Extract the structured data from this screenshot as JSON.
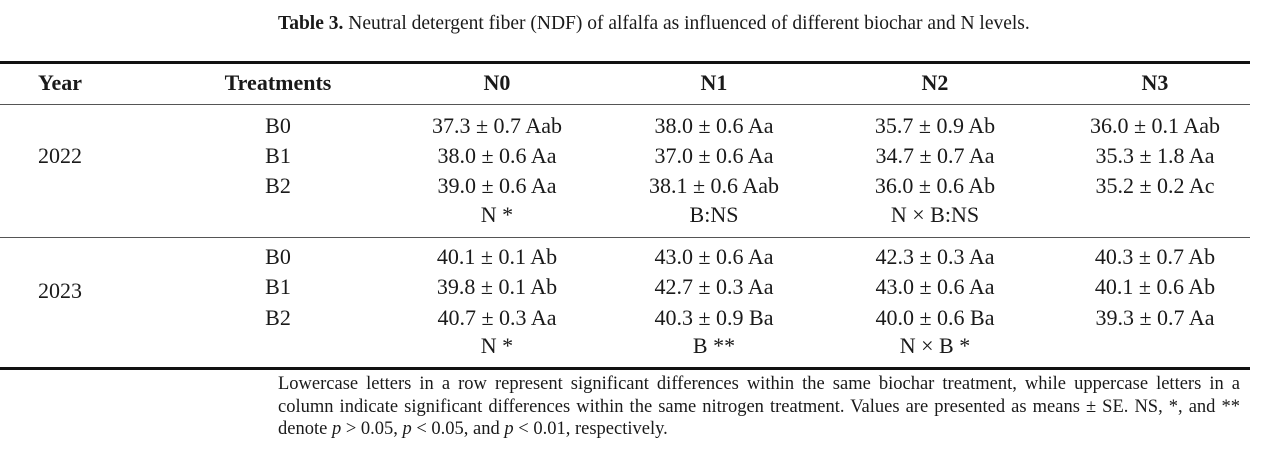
{
  "caption": {
    "label": "Table 3.",
    "text": "Neutral detergent fiber (NDF) of alfalfa as influenced of different biochar and N levels."
  },
  "headers": [
    "Year",
    "Treatments",
    "N0",
    "N1",
    "N2",
    "N3"
  ],
  "groups": [
    {
      "year": "2022",
      "rows": [
        {
          "treatment": "B0",
          "values": [
            "37.3 ± 0.7 Aab",
            "38.0 ± 0.6 Aa",
            "35.7 ± 0.9 Ab",
            "36.0 ± 0.1 Aab"
          ]
        },
        {
          "treatment": "B1",
          "values": [
            "38.0 ± 0.6 Aa",
            "37.0 ± 0.6 Aa",
            "34.7 ± 0.7 Aa",
            "35.3 ± 1.8 Aa"
          ]
        },
        {
          "treatment": "B2",
          "values": [
            "39.0 ± 0.6 Aa",
            "38.1 ± 0.6 Aab",
            "36.0 ± 0.6 Ab",
            "35.2 ± 0.2 Ac"
          ]
        }
      ],
      "significance": [
        "N *",
        "B:NS",
        "N × B:NS",
        ""
      ]
    },
    {
      "year": "2023",
      "rows": [
        {
          "treatment": "B0",
          "values": [
            "40.1 ± 0.1 Ab",
            "43.0 ± 0.6 Aa",
            "42.3 ± 0.3 Aa",
            "40.3 ± 0.7 Ab"
          ]
        },
        {
          "treatment": "B1",
          "values": [
            "39.8 ± 0.1 Ab",
            "42.7 ± 0.3 Aa",
            "43.0 ± 0.6 Aa",
            "40.1 ± 0.6 Ab"
          ]
        },
        {
          "treatment": "B2",
          "values": [
            "40.7 ± 0.3 Aa",
            "40.3 ± 0.9 Ba",
            "40.0 ± 0.6 Ba",
            "39.3 ± 0.7 Aa"
          ]
        }
      ],
      "significance": [
        "N *",
        "B **",
        "N × B *",
        ""
      ]
    }
  ],
  "footnote": {
    "part1": "Lowercase letters in a row represent significant differences within the same biochar treatment, while uppercase letters in a column indicate significant differences within the same nitrogen treatment. Values are presented as means ± SE. NS, *, and ** denote ",
    "p": "p",
    "t1": " > 0.05, ",
    "t2": " < 0.05, and ",
    "t3": " < 0.01, respectively."
  }
}
